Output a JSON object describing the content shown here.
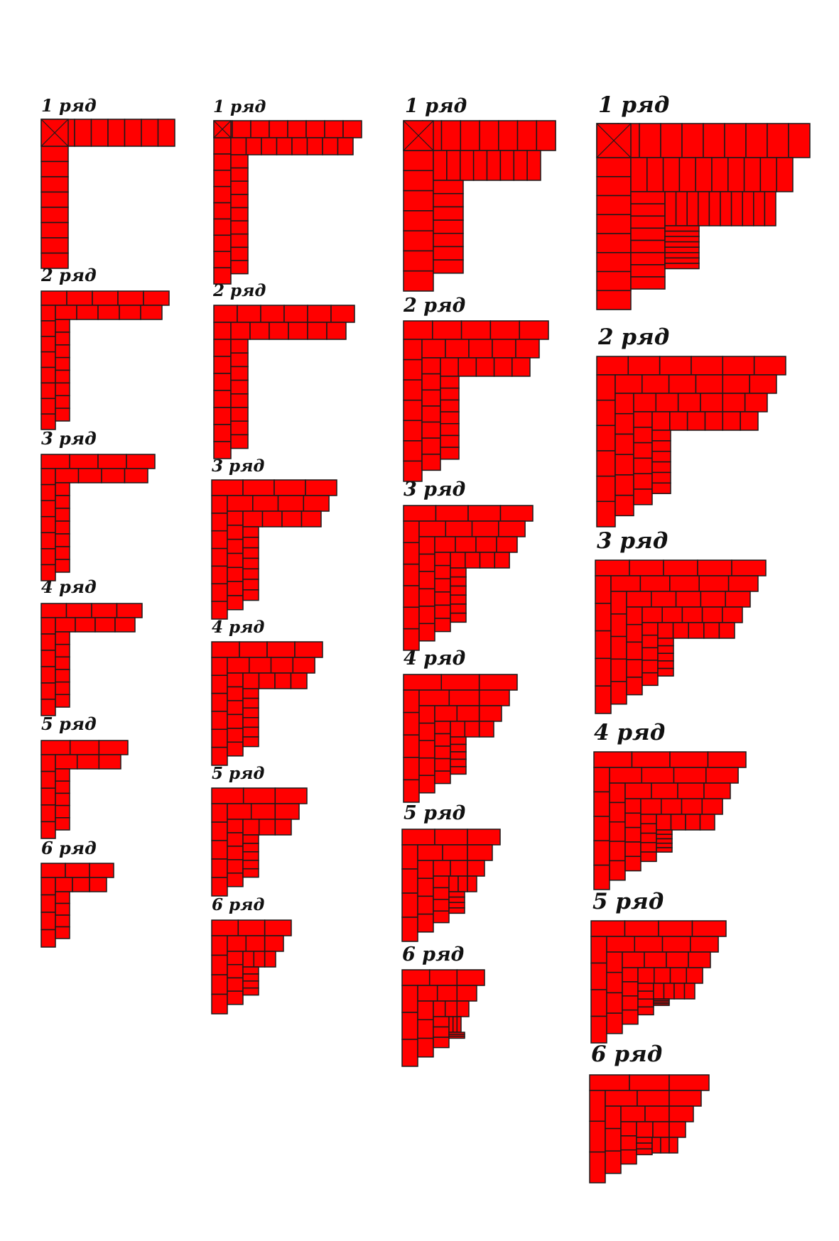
{
  "brick_color": "#ff0000",
  "mortar_color": "#1a1a1a",
  "columns": [
    {
      "id": "column-1",
      "rows": [
        {
          "label": "1 ряд"
        },
        {
          "label": "2 ряд"
        },
        {
          "label": "3 ряд"
        },
        {
          "label": "4 ряд"
        },
        {
          "label": "5 ряд"
        },
        {
          "label": "6 ряд"
        }
      ]
    },
    {
      "id": "column-2",
      "rows": [
        {
          "label": "1 ряд"
        },
        {
          "label": "2 ряд"
        },
        {
          "label": "3 ряд"
        },
        {
          "label": "4 ряд"
        },
        {
          "label": "5 ряд"
        },
        {
          "label": "6 ряд"
        }
      ]
    },
    {
      "id": "column-3",
      "rows": [
        {
          "label": "1 ряд"
        },
        {
          "label": "2 ряд"
        },
        {
          "label": "3 ряд"
        },
        {
          "label": "4 ряд"
        },
        {
          "label": "5 ряд"
        },
        {
          "label": "6 ряд"
        }
      ]
    },
    {
      "id": "column-4",
      "rows": [
        {
          "label": "1 ряд"
        },
        {
          "label": "2 ряд"
        },
        {
          "label": "3 ряд"
        },
        {
          "label": "4 ряд"
        },
        {
          "label": "5 ряд"
        },
        {
          "label": "6 ряд"
        }
      ]
    }
  ]
}
